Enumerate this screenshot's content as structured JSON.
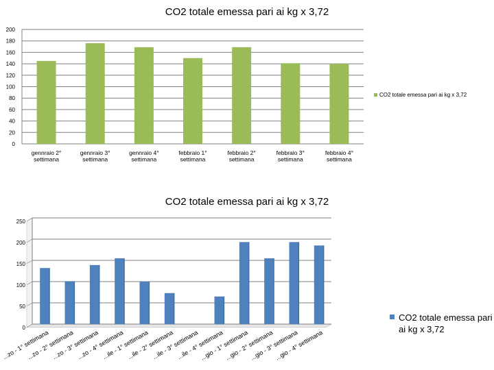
{
  "chart_data": [
    {
      "type": "bar",
      "title": "CO2 totale emessa pari ai kg x 3,72",
      "categories": [
        "gennraio 2° settimana",
        "gennraio 3° settimana",
        "gennraio 4° settimana",
        "febbraio 1° settimana",
        "febbraio 2° settimana",
        "febbraio 3° settimana",
        "febbraio 4° settimana"
      ],
      "category_lines": [
        [
          "gennraio 2°",
          "settimana"
        ],
        [
          "gennraio 3°",
          "settimana"
        ],
        [
          "gennraio 4°",
          "settimana"
        ],
        [
          "febbraio 1°",
          "settimana"
        ],
        [
          "febbraio 2°",
          "settimana"
        ],
        [
          "febbraio 3°",
          "settimana"
        ],
        [
          "febbraio 4°",
          "settimana"
        ]
      ],
      "series": [
        {
          "name": "CO2 totale emessa pari ai kg x 3,72",
          "values": [
            145,
            176,
            169,
            150,
            169,
            141,
            140
          ]
        }
      ],
      "ylim": [
        0,
        200
      ],
      "yticks": [
        0,
        20,
        40,
        60,
        80,
        100,
        120,
        140,
        160,
        180,
        200
      ],
      "grid": true,
      "legend": "right",
      "color": "#9bbb59",
      "xlabel": "",
      "ylabel": ""
    },
    {
      "type": "bar",
      "title": "CO2 totale emessa pari ai kg x 3,72",
      "categories": [
        "...zo - 1° settimana",
        "...zo - 2° settimana",
        "...zo - 3° settimana",
        "...zo - 4° settimana",
        "...ile - 1° settimana",
        "...ile - 2° settimana",
        "...ile - 3° settimana",
        "...ile - 4° settimana",
        "...gio - 1° settimana",
        "...gio - 2° settimana",
        "...gio - 3° settimana",
        "...gio - 4° settimana"
      ],
      "series": [
        {
          "name": "CO2 totale emessa pari ai kg x 3,72",
          "values": [
            132,
            101,
            139,
            155,
            100,
            73,
            0,
            65,
            193,
            155,
            193,
            185
          ]
        }
      ],
      "ylim": [
        0,
        250
      ],
      "yticks": [
        0,
        50,
        100,
        150,
        200,
        250
      ],
      "grid": true,
      "legend": "right",
      "color": "#4f81bd",
      "xlabel": "",
      "ylabel": ""
    }
  ]
}
